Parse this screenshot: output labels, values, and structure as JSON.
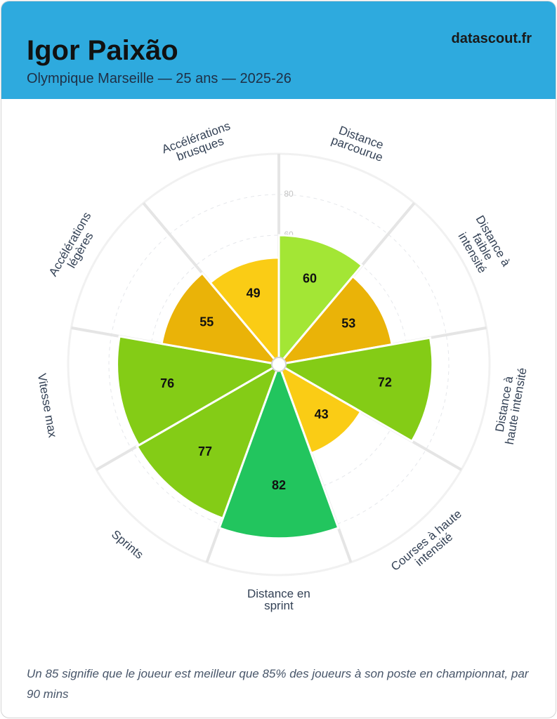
{
  "header": {
    "title": "Igor Paixão",
    "subtitle": "Olympique Marseille — 25 ans — 2025-26",
    "brand": "datascout.fr"
  },
  "chart_data": {
    "type": "pizza",
    "categories": [
      "Distance\nparcourue",
      "Distance à\nfaible\nintensité",
      "Distance à\nhaute intensité",
      "Courses à haute\nintensité",
      "Distance en\nsprint",
      "Sprints",
      "Vitesse max",
      "Accélérations\nlégères",
      "Accélérations\nbrusques"
    ],
    "values": [
      60,
      53,
      72,
      43,
      82,
      77,
      76,
      55,
      49
    ],
    "colors": [
      "#a3e635",
      "#eab308",
      "#84cc16",
      "#facc15",
      "#22c55e",
      "#84cc16",
      "#84cc16",
      "#eab308",
      "#facc15"
    ],
    "ylim": [
      0,
      100
    ],
    "yticks": [
      20,
      40,
      60,
      80
    ],
    "grid": true
  },
  "footnote": "Un 85 signifie que le joueur est meilleur que 85% des joueurs à son poste en championnat, par 90 mins"
}
